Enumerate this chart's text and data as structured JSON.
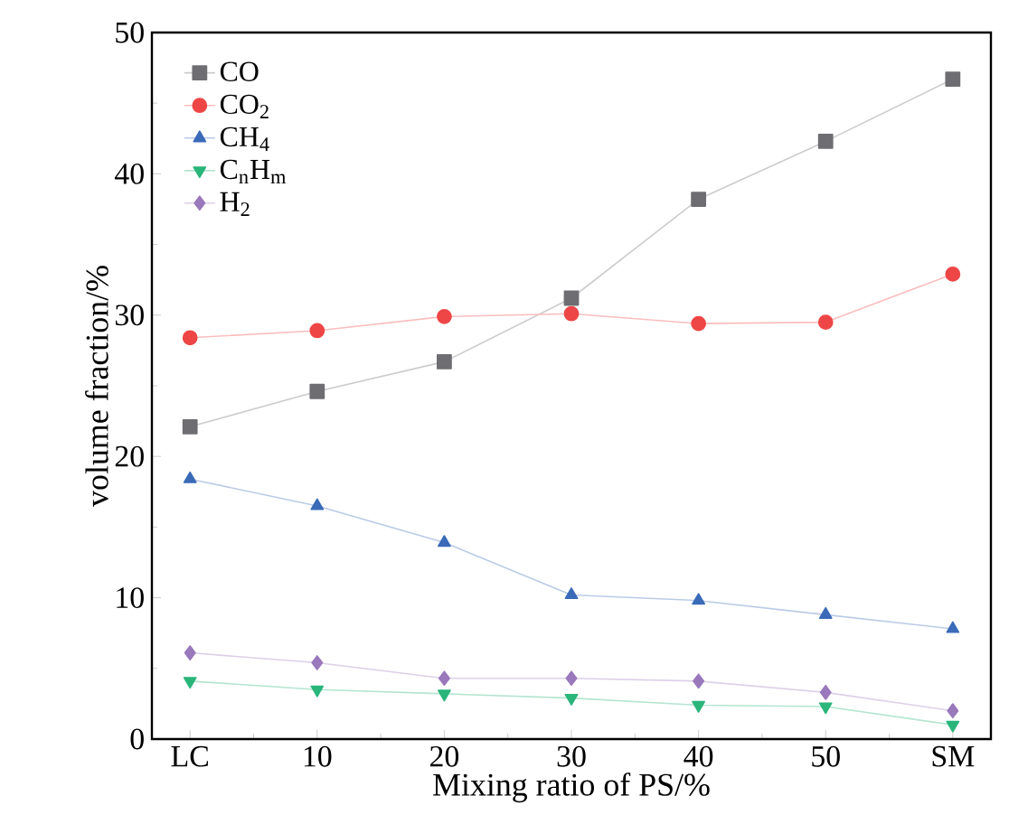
{
  "chart_data": {
    "type": "line",
    "xlabel": "Mixing ratio of PS/%",
    "ylabel": "volume fraction/%",
    "categories": [
      "LC",
      "10",
      "20",
      "30",
      "40",
      "50",
      "SM"
    ],
    "series": [
      {
        "name": "CO",
        "color": "#6e6e72",
        "marker": "square",
        "values": [
          22.1,
          24.6,
          26.7,
          31.2,
          38.2,
          42.3,
          46.7
        ]
      },
      {
        "name": "CO$_{2}$",
        "color": "#ee4646",
        "marker": "circle",
        "values": [
          28.4,
          28.9,
          29.9,
          30.1,
          29.4,
          29.5,
          32.9
        ]
      },
      {
        "name": "CH$_{4}$",
        "color": "#3a6ab8",
        "marker": "triangle",
        "values": [
          18.4,
          16.5,
          13.9,
          10.2,
          9.8,
          8.8,
          7.8
        ]
      },
      {
        "name": "C$_{n}$H$_{m}$",
        "color": "#2ab57a",
        "marker": "triangle-down",
        "values": [
          4.1,
          3.5,
          3.2,
          2.9,
          2.4,
          2.3,
          1.0
        ]
      },
      {
        "name": "H$_{2}$",
        "color": "#9a78bc",
        "marker": "diamond",
        "values": [
          6.1,
          5.4,
          4.3,
          4.3,
          4.1,
          3.3,
          2.0
        ]
      }
    ],
    "ylim": [
      0,
      50
    ],
    "yticks": [
      0,
      10,
      20,
      30,
      40,
      50
    ],
    "legend": "top left",
    "grid": false,
    "line_style": "solid"
  }
}
